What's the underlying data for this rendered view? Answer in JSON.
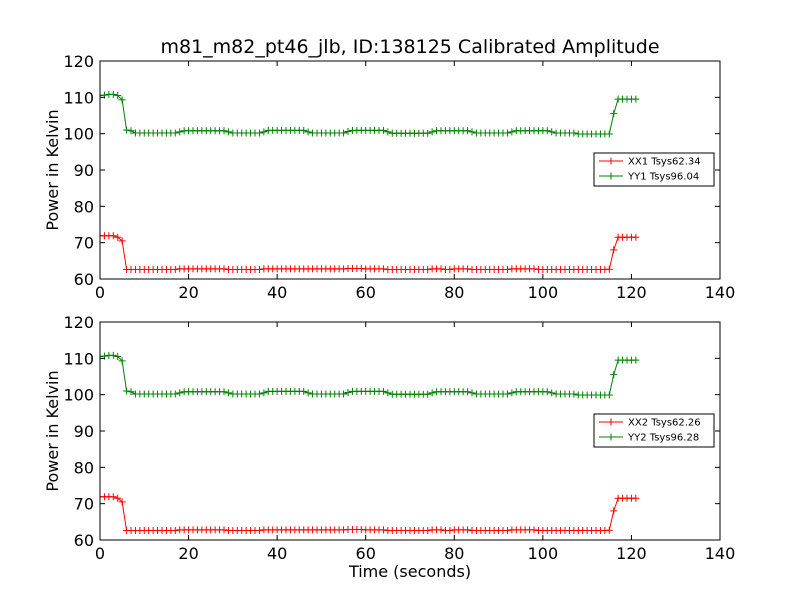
{
  "title": "m81_m82_pt46_jlb, ID:138125 Calibrated Amplitude",
  "colors": {
    "xx": "#ff0000",
    "yy": "#008000",
    "axes": "#000000",
    "background": "#ffffff"
  },
  "chart_data": [
    {
      "type": "line",
      "ylabel": "Power in Kelvin",
      "xlabel": "",
      "xlim": [
        0,
        140
      ],
      "ylim": [
        60,
        120
      ],
      "xticks": [
        0,
        20,
        40,
        60,
        80,
        100,
        120,
        140
      ],
      "yticks": [
        60,
        70,
        80,
        90,
        100,
        110,
        120
      ],
      "grid": false,
      "marker": "+",
      "legend_position": "center-right",
      "x": [
        0,
        1,
        2,
        3,
        4,
        5,
        6,
        7,
        8,
        9,
        10,
        11,
        12,
        13,
        14,
        15,
        16,
        17,
        18,
        19,
        20,
        21,
        22,
        23,
        24,
        25,
        26,
        27,
        28,
        29,
        30,
        31,
        32,
        33,
        34,
        35,
        36,
        37,
        38,
        39,
        40,
        41,
        42,
        43,
        44,
        45,
        46,
        47,
        48,
        49,
        50,
        51,
        52,
        53,
        54,
        55,
        56,
        57,
        58,
        59,
        60,
        61,
        62,
        63,
        64,
        65,
        66,
        67,
        68,
        69,
        70,
        71,
        72,
        73,
        74,
        75,
        76,
        77,
        78,
        79,
        80,
        81,
        82,
        83,
        84,
        85,
        86,
        87,
        88,
        89,
        90,
        91,
        92,
        93,
        94,
        95,
        96,
        97,
        98,
        99,
        100,
        101,
        102,
        103,
        104,
        105,
        106,
        107,
        108,
        109,
        110,
        111,
        112,
        113,
        114,
        115,
        116,
        117,
        118,
        119,
        120,
        121
      ],
      "series": [
        {
          "name": "XX1 Tsys62.34",
          "color": "#ff0000",
          "values": [
            71.9,
            71.9,
            71.9,
            71.9,
            71.5,
            70.5,
            62.6,
            62.6,
            62.6,
            62.6,
            62.6,
            62.6,
            62.6,
            62.6,
            62.6,
            62.6,
            62.6,
            62.6,
            62.8,
            62.8,
            62.8,
            62.8,
            62.8,
            62.8,
            62.8,
            62.8,
            62.8,
            62.8,
            62.8,
            62.6,
            62.6,
            62.6,
            62.6,
            62.6,
            62.6,
            62.6,
            62.6,
            62.8,
            62.8,
            62.8,
            62.8,
            62.8,
            62.8,
            62.8,
            62.8,
            62.8,
            62.8,
            62.8,
            62.8,
            62.8,
            62.8,
            62.8,
            62.8,
            62.8,
            62.8,
            62.8,
            62.9,
            62.9,
            62.9,
            62.9,
            62.8,
            62.8,
            62.8,
            62.8,
            62.8,
            62.6,
            62.6,
            62.6,
            62.6,
            62.6,
            62.6,
            62.6,
            62.6,
            62.6,
            62.6,
            62.8,
            62.8,
            62.8,
            62.6,
            62.6,
            62.8,
            62.8,
            62.8,
            62.8,
            62.6,
            62.6,
            62.6,
            62.6,
            62.6,
            62.6,
            62.6,
            62.6,
            62.6,
            62.8,
            62.8,
            62.8,
            62.8,
            62.8,
            62.8,
            62.6,
            62.6,
            62.6,
            62.6,
            62.6,
            62.6,
            62.6,
            62.6,
            62.6,
            62.6,
            62.6,
            62.6,
            62.6,
            62.6,
            62.6,
            62.6,
            62.7,
            68.0,
            71.5,
            71.5,
            71.5,
            71.5,
            71.5
          ]
        },
        {
          "name": "YY1 Tsys96.04",
          "color": "#008000",
          "values": [
            110.5,
            110.6,
            110.8,
            110.8,
            110.5,
            109.3,
            101.0,
            100.8,
            100.2,
            100.2,
            100.2,
            100.2,
            100.2,
            100.2,
            100.2,
            100.2,
            100.2,
            100.2,
            100.5,
            100.8,
            100.8,
            100.8,
            100.8,
            100.8,
            100.8,
            100.8,
            100.8,
            100.8,
            100.8,
            100.5,
            100.2,
            100.2,
            100.2,
            100.2,
            100.2,
            100.2,
            100.2,
            100.5,
            100.9,
            100.9,
            100.9,
            100.9,
            100.9,
            100.9,
            100.9,
            100.9,
            100.9,
            100.5,
            100.2,
            100.2,
            100.2,
            100.2,
            100.2,
            100.2,
            100.2,
            100.2,
            100.6,
            100.9,
            100.9,
            100.9,
            100.9,
            100.9,
            100.9,
            100.9,
            100.9,
            100.5,
            100.1,
            100.1,
            100.1,
            100.1,
            100.1,
            100.1,
            100.1,
            100.1,
            100.1,
            100.5,
            100.8,
            100.8,
            100.8,
            100.8,
            100.8,
            100.8,
            100.8,
            100.8,
            100.5,
            100.2,
            100.2,
            100.2,
            100.2,
            100.2,
            100.2,
            100.2,
            100.2,
            100.5,
            100.8,
            100.8,
            100.8,
            100.8,
            100.8,
            100.8,
            100.8,
            100.8,
            100.5,
            100.2,
            100.2,
            100.2,
            100.2,
            100.2,
            99.9,
            99.9,
            99.9,
            99.9,
            99.9,
            99.9,
            99.9,
            99.9,
            105.5,
            109.5,
            109.5,
            109.5,
            109.5,
            109.5
          ]
        }
      ]
    },
    {
      "type": "line",
      "ylabel": "Power in Kelvin",
      "xlabel": "Time (seconds)",
      "xlim": [
        0,
        140
      ],
      "ylim": [
        60,
        120
      ],
      "xticks": [
        0,
        20,
        40,
        60,
        80,
        100,
        120,
        140
      ],
      "yticks": [
        60,
        70,
        80,
        90,
        100,
        110,
        120
      ],
      "grid": false,
      "marker": "+",
      "legend_position": "center-right",
      "x": [
        0,
        1,
        2,
        3,
        4,
        5,
        6,
        7,
        8,
        9,
        10,
        11,
        12,
        13,
        14,
        15,
        16,
        17,
        18,
        19,
        20,
        21,
        22,
        23,
        24,
        25,
        26,
        27,
        28,
        29,
        30,
        31,
        32,
        33,
        34,
        35,
        36,
        37,
        38,
        39,
        40,
        41,
        42,
        43,
        44,
        45,
        46,
        47,
        48,
        49,
        50,
        51,
        52,
        53,
        54,
        55,
        56,
        57,
        58,
        59,
        60,
        61,
        62,
        63,
        64,
        65,
        66,
        67,
        68,
        69,
        70,
        71,
        72,
        73,
        74,
        75,
        76,
        77,
        78,
        79,
        80,
        81,
        82,
        83,
        84,
        85,
        86,
        87,
        88,
        89,
        90,
        91,
        92,
        93,
        94,
        95,
        96,
        97,
        98,
        99,
        100,
        101,
        102,
        103,
        104,
        105,
        106,
        107,
        108,
        109,
        110,
        111,
        112,
        113,
        114,
        115,
        116,
        117,
        118,
        119,
        120,
        121
      ],
      "series": [
        {
          "name": "XX2 Tsys62.26",
          "color": "#ff0000",
          "values": [
            71.9,
            71.9,
            71.9,
            71.9,
            71.5,
            70.5,
            62.6,
            62.6,
            62.6,
            62.6,
            62.6,
            62.6,
            62.6,
            62.6,
            62.6,
            62.6,
            62.6,
            62.6,
            62.8,
            62.8,
            62.8,
            62.8,
            62.8,
            62.8,
            62.8,
            62.8,
            62.8,
            62.8,
            62.8,
            62.6,
            62.6,
            62.6,
            62.6,
            62.6,
            62.6,
            62.6,
            62.6,
            62.8,
            62.8,
            62.8,
            62.8,
            62.8,
            62.8,
            62.8,
            62.8,
            62.8,
            62.8,
            62.8,
            62.8,
            62.8,
            62.8,
            62.8,
            62.8,
            62.8,
            62.8,
            62.8,
            62.9,
            62.9,
            62.9,
            62.9,
            62.8,
            62.8,
            62.8,
            62.8,
            62.8,
            62.6,
            62.6,
            62.6,
            62.6,
            62.6,
            62.6,
            62.6,
            62.6,
            62.6,
            62.6,
            62.8,
            62.8,
            62.8,
            62.6,
            62.6,
            62.8,
            62.8,
            62.8,
            62.8,
            62.6,
            62.6,
            62.6,
            62.6,
            62.6,
            62.6,
            62.6,
            62.6,
            62.6,
            62.8,
            62.8,
            62.8,
            62.8,
            62.8,
            62.8,
            62.6,
            62.6,
            62.6,
            62.6,
            62.6,
            62.6,
            62.6,
            62.6,
            62.6,
            62.6,
            62.6,
            62.6,
            62.6,
            62.6,
            62.6,
            62.6,
            62.7,
            68.0,
            71.5,
            71.5,
            71.5,
            71.5,
            71.5
          ]
        },
        {
          "name": "YY2 Tsys96.28",
          "color": "#008000",
          "values": [
            110.5,
            110.6,
            110.8,
            110.8,
            110.5,
            109.3,
            101.0,
            100.8,
            100.2,
            100.2,
            100.2,
            100.2,
            100.2,
            100.2,
            100.2,
            100.2,
            100.2,
            100.2,
            100.5,
            100.8,
            100.8,
            100.8,
            100.8,
            100.8,
            100.8,
            100.8,
            100.8,
            100.8,
            100.8,
            100.5,
            100.2,
            100.2,
            100.2,
            100.2,
            100.2,
            100.2,
            100.2,
            100.5,
            100.9,
            100.9,
            100.9,
            100.9,
            100.9,
            100.9,
            100.9,
            100.9,
            100.9,
            100.5,
            100.2,
            100.2,
            100.2,
            100.2,
            100.2,
            100.2,
            100.2,
            100.2,
            100.6,
            100.9,
            100.9,
            100.9,
            100.9,
            100.9,
            100.9,
            100.9,
            100.9,
            100.5,
            100.1,
            100.1,
            100.1,
            100.1,
            100.1,
            100.1,
            100.1,
            100.1,
            100.1,
            100.5,
            100.8,
            100.8,
            100.8,
            100.8,
            100.8,
            100.8,
            100.8,
            100.8,
            100.5,
            100.2,
            100.2,
            100.2,
            100.2,
            100.2,
            100.2,
            100.2,
            100.2,
            100.5,
            100.8,
            100.8,
            100.8,
            100.8,
            100.8,
            100.8,
            100.8,
            100.8,
            100.5,
            100.2,
            100.2,
            100.2,
            100.2,
            100.2,
            99.9,
            99.9,
            99.9,
            99.9,
            99.9,
            99.9,
            99.9,
            99.9,
            105.5,
            109.5,
            109.5,
            109.5,
            109.5,
            109.5
          ]
        }
      ]
    }
  ]
}
